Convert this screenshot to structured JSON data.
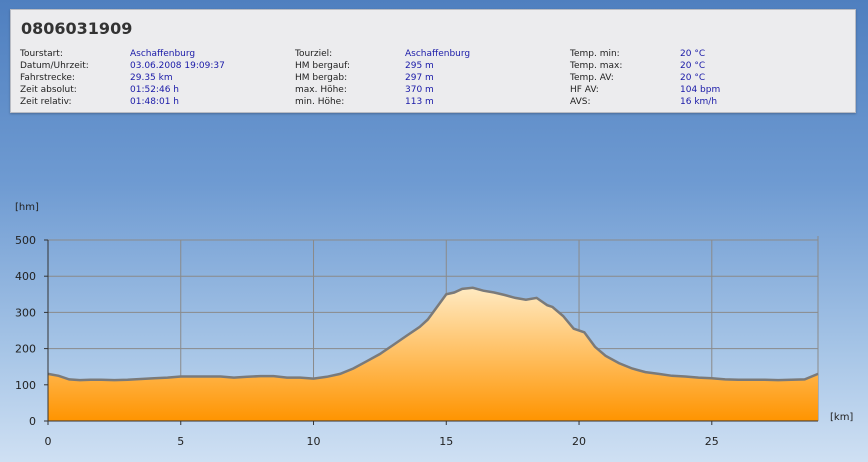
{
  "header": {
    "title": "0806031909"
  },
  "info": {
    "columns": [
      [
        {
          "label": "Tourstart:",
          "value": "Aschaffenburg"
        },
        {
          "label": "Datum/Uhrzeit:",
          "value": "03.06.2008 19:09:37"
        },
        {
          "label": "Fahrstrecke:",
          "value": "29.35 km"
        },
        {
          "label": "Zeit absolut:",
          "value": "01:52:46 h"
        },
        {
          "label": "Zeit relativ:",
          "value": "01:48:01 h"
        }
      ],
      [
        {
          "label": "Tourziel:",
          "value": "Aschaffenburg"
        },
        {
          "label": "HM bergauf:",
          "value": "295 m"
        },
        {
          "label": "HM bergab:",
          "value": "297 m"
        },
        {
          "label": "max. Höhe:",
          "value": "370 m"
        },
        {
          "label": "min. Höhe:",
          "value": "113 m"
        }
      ],
      [
        {
          "label": "Temp. min:",
          "value": "20 °C"
        },
        {
          "label": "Temp. max:",
          "value": "20 °C"
        },
        {
          "label": "Temp. AV:",
          "value": "20 °C"
        },
        {
          "label": "HF AV:",
          "value": "104 bpm"
        },
        {
          "label": "AVS:",
          "value": "16 km/h"
        }
      ]
    ]
  },
  "colors": {
    "value_text": "#1a1aa8",
    "fill_top": "#ffeac2",
    "fill_bottom": "#ff9400",
    "line": "#7a7a7a",
    "grid": "#8a8a8a"
  },
  "chart_data": {
    "type": "area",
    "title": "",
    "xlabel": "[km]",
    "ylabel": "[hm]",
    "xlim": [
      0,
      29
    ],
    "ylim": [
      0,
      500
    ],
    "xticks": [
      0,
      5,
      10,
      15,
      20,
      25
    ],
    "yticks": [
      0,
      100,
      200,
      300,
      400,
      500
    ],
    "grid": true,
    "series": [
      {
        "x": [
          0,
          0.4,
          0.8,
          1.2,
          1.6,
          2.0,
          2.5,
          3.0,
          3.5,
          4.0,
          4.5,
          5.0,
          5.5,
          6.0,
          6.5,
          7.0,
          7.5,
          8.0,
          8.5,
          9.0,
          9.5,
          10.0,
          10.5,
          11.0,
          11.5,
          12.0,
          12.5,
          13.0,
          13.5,
          14.0,
          14.3,
          14.6,
          15.0,
          15.3,
          15.6,
          16.0,
          16.4,
          16.8,
          17.2,
          17.6,
          18.0,
          18.4,
          18.8,
          19.0,
          19.4,
          19.8,
          20.2,
          20.6,
          21.0,
          21.5,
          22.0,
          22.5,
          23.0,
          23.5,
          24.0,
          24.5,
          25.0,
          25.5,
          26.0,
          26.5,
          27.0,
          27.5,
          28.0,
          28.5,
          29.0
        ],
        "y": [
          130,
          125,
          115,
          113,
          114,
          114,
          113,
          114,
          116,
          118,
          120,
          123,
          123,
          123,
          123,
          120,
          122,
          124,
          124,
          120,
          120,
          117,
          122,
          130,
          145,
          165,
          185,
          210,
          235,
          260,
          280,
          310,
          350,
          355,
          365,
          368,
          360,
          355,
          348,
          340,
          335,
          340,
          320,
          315,
          290,
          255,
          245,
          205,
          180,
          160,
          145,
          135,
          130,
          125,
          123,
          120,
          118,
          115,
          114,
          114,
          114,
          113,
          114,
          115,
          130
        ]
      }
    ]
  }
}
